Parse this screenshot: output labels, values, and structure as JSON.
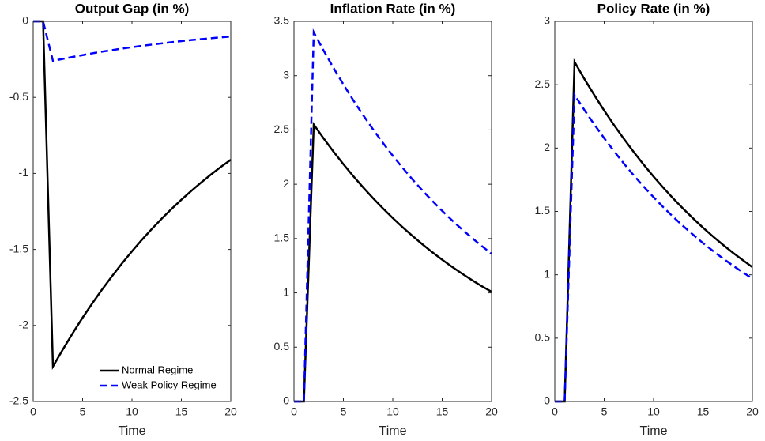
{
  "chart_data": [
    {
      "type": "line",
      "title": "Output Gap (in %)",
      "xlabel": "Time",
      "x": [
        0,
        1,
        2,
        3,
        4,
        5,
        6,
        7,
        8,
        9,
        10,
        11,
        12,
        13,
        14,
        15,
        16,
        17,
        18,
        19,
        20
      ],
      "xlim": [
        0,
        20
      ],
      "xticks": [
        0,
        5,
        10,
        15,
        20
      ],
      "ylim": [
        -2.5,
        0
      ],
      "yticks": [
        -2.5,
        -2,
        -1.5,
        -1,
        -0.5,
        0
      ],
      "legend": "lower right",
      "series": [
        {
          "name": "Normal Regime",
          "color": "#000000",
          "linestyle": "solid",
          "values": [
            0,
            0,
            -2.27,
            -2.158,
            -2.051,
            -1.949,
            -1.853,
            -1.761,
            -1.674,
            -1.591,
            -1.512,
            -1.437,
            -1.366,
            -1.298,
            -1.234,
            -1.173,
            -1.115,
            -1.06,
            -1.007,
            -0.957,
            -0.91
          ]
        },
        {
          "name": "Weak Policy Regime",
          "color": "#0000ff",
          "linestyle": "dashed",
          "values": [
            0,
            0,
            -0.26,
            -0.247,
            -0.234,
            -0.222,
            -0.21,
            -0.199,
            -0.189,
            -0.179,
            -0.17,
            -0.161,
            -0.153,
            -0.145,
            -0.137,
            -0.13,
            -0.123,
            -0.117,
            -0.111,
            -0.105,
            -0.1
          ]
        }
      ]
    },
    {
      "type": "line",
      "title": "Inflation Rate (in %)",
      "xlabel": "Time",
      "x": [
        0,
        1,
        2,
        3,
        4,
        5,
        6,
        7,
        8,
        9,
        10,
        11,
        12,
        13,
        14,
        15,
        16,
        17,
        18,
        19,
        20
      ],
      "xlim": [
        0,
        20
      ],
      "xticks": [
        0,
        5,
        10,
        15,
        20
      ],
      "ylim": [
        0,
        3.5
      ],
      "yticks": [
        0,
        0.5,
        1,
        1.5,
        2,
        2.5,
        3,
        3.5
      ],
      "series": [
        {
          "color": "#000000",
          "linestyle": "solid",
          "values": [
            0,
            0,
            2.55,
            2.422,
            2.3,
            2.185,
            2.075,
            1.971,
            1.872,
            1.778,
            1.689,
            1.604,
            1.524,
            1.447,
            1.374,
            1.305,
            1.24,
            1.178,
            1.118,
            1.062,
            1.01
          ]
        },
        {
          "color": "#0000ff",
          "linestyle": "dashed",
          "values": [
            0,
            0,
            3.4,
            3.231,
            3.071,
            2.919,
            2.774,
            2.636,
            2.506,
            2.381,
            2.263,
            2.151,
            2.044,
            1.943,
            1.847,
            1.755,
            1.668,
            1.585,
            1.507,
            1.432,
            1.36
          ]
        }
      ]
    },
    {
      "type": "line",
      "title": "Policy Rate (in %)",
      "xlabel": "Time",
      "x": [
        0,
        1,
        2,
        3,
        4,
        5,
        6,
        7,
        8,
        9,
        10,
        11,
        12,
        13,
        14,
        15,
        16,
        17,
        18,
        19,
        20
      ],
      "xlim": [
        0,
        20
      ],
      "xticks": [
        0,
        5,
        10,
        15,
        20
      ],
      "ylim": [
        0,
        3
      ],
      "yticks": [
        0,
        0.5,
        1,
        1.5,
        2,
        2.5,
        3
      ],
      "series": [
        {
          "color": "#000000",
          "linestyle": "solid",
          "values": [
            0,
            0,
            2.68,
            2.545,
            2.418,
            2.296,
            2.181,
            2.072,
            1.968,
            1.869,
            1.775,
            1.686,
            1.601,
            1.521,
            1.445,
            1.372,
            1.303,
            1.238,
            1.176,
            1.117,
            1.06
          ]
        },
        {
          "color": "#0000ff",
          "linestyle": "dashed",
          "values": [
            0,
            0,
            2.42,
            2.3,
            2.186,
            2.078,
            1.975,
            1.877,
            1.784,
            1.696,
            1.612,
            1.532,
            1.456,
            1.384,
            1.316,
            1.25,
            1.189,
            1.13,
            1.074,
            1.021,
            0.97
          ]
        }
      ]
    }
  ]
}
